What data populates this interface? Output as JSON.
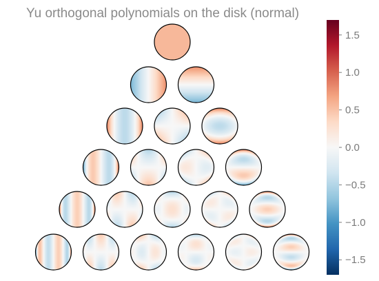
{
  "chart_data": {
    "type": "heatmap",
    "title": "Yu orthogonal polynomials on the disk (normal)",
    "layout": "triangle",
    "rows": 6,
    "description_of_cells": [
      {
        "row": 0,
        "count": 1
      },
      {
        "row": 1,
        "count": 2
      },
      {
        "row": 2,
        "count": 3
      },
      {
        "row": 3,
        "count": 4
      },
      {
        "row": 4,
        "count": 5
      },
      {
        "row": 5,
        "count": 6
      }
    ],
    "colormap": "RdBu_r",
    "colorbar": {
      "range": [
        -1.7,
        1.7
      ],
      "ticks": [
        {
          "value": 1.5,
          "label": "1.5"
        },
        {
          "value": 1.0,
          "label": "1.0"
        },
        {
          "value": 0.5,
          "label": "0.5"
        },
        {
          "value": 0.0,
          "label": "0.0"
        },
        {
          "value": -0.5,
          "label": "−0.5"
        },
        {
          "value": -1.0,
          "label": "−1.0"
        },
        {
          "value": -1.5,
          "label": "−1.5"
        }
      ]
    },
    "colors": {
      "stops": [
        "#053061",
        "#2166ac",
        "#4393c3",
        "#92c5de",
        "#d1e5f0",
        "#f7f7f7",
        "#fddbc7",
        "#f4a582",
        "#d6604d",
        "#b2182b",
        "#67001f"
      ],
      "outline": "#000000",
      "title": "#8a8a8a",
      "ticks": "#7a7a7a"
    }
  }
}
